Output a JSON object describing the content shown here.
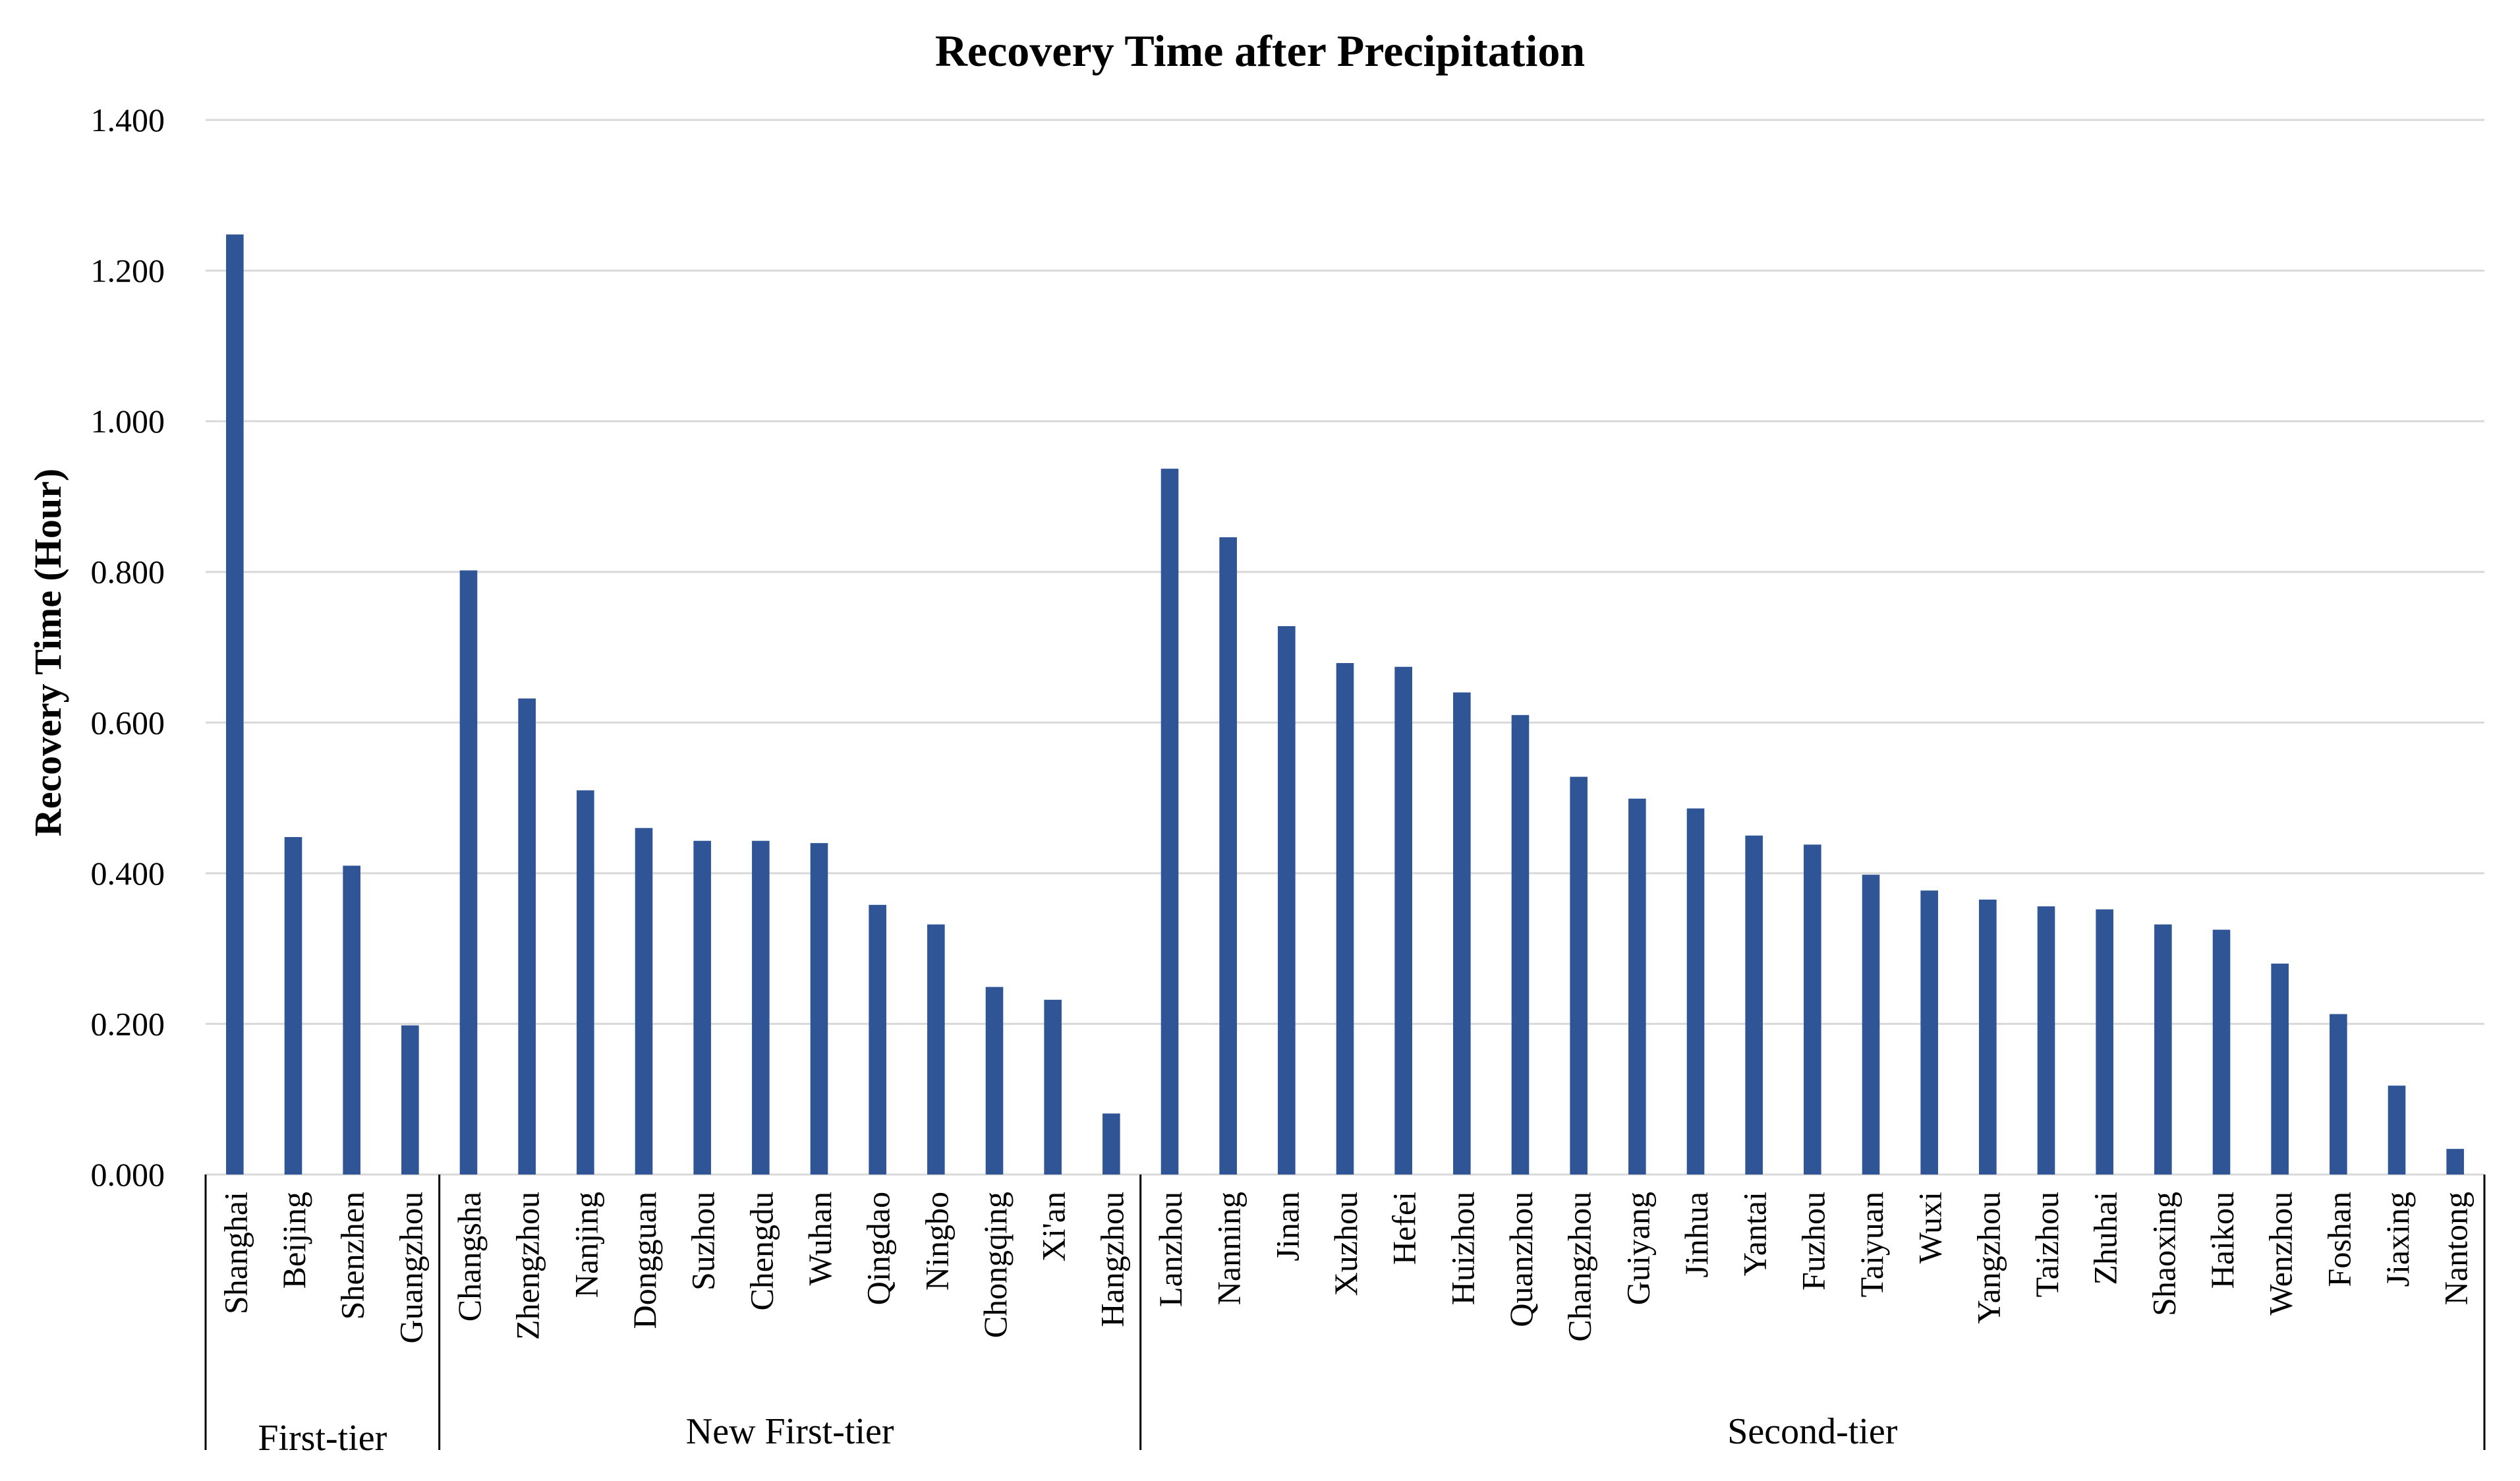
{
  "chart_data": {
    "type": "bar",
    "title": "Recovery Time after Precipitation",
    "ylabel": "Recovery Time (Hour)",
    "xlabel": "",
    "ylim": [
      0,
      1.4
    ],
    "yticks": [
      "0.000",
      "0.200",
      "0.400",
      "0.600",
      "0.800",
      "1.000",
      "1.200",
      "1.400"
    ],
    "grid": true,
    "color": "#2f5597",
    "categories": [
      "Shanghai",
      "Beijing",
      "Shenzhen",
      "Guangzhou",
      "Changsha",
      "Zhengzhou",
      "Nanjing",
      "Dongguan",
      "Suzhou",
      "Chengdu",
      "Wuhan",
      "Qingdao",
      "Ningbo",
      "Chongqing",
      "Xi'an",
      "Hangzhou",
      "Lanzhou",
      "Nanning",
      "Jinan",
      "Xuzhou",
      "Hefei",
      "Huizhou",
      "Quanzhou",
      "Changzhou",
      "Guiyang",
      "Jinhua",
      "Yantai",
      "Fuzhou",
      "Taiyuan",
      "Wuxi",
      "Yangzhou",
      "Taizhou",
      "Zhuhai",
      "Shaoxing",
      "Haikou",
      "Wenzhou",
      "Foshan",
      "Jiaxing",
      "Nantong"
    ],
    "values": [
      1.248,
      0.448,
      0.41,
      0.198,
      0.802,
      0.632,
      0.51,
      0.46,
      0.443,
      0.443,
      0.44,
      0.358,
      0.332,
      0.249,
      0.232,
      0.081,
      0.937,
      0.846,
      0.728,
      0.679,
      0.674,
      0.64,
      0.61,
      0.528,
      0.499,
      0.486,
      0.45,
      0.438,
      0.398,
      0.377,
      0.365,
      0.356,
      0.352,
      0.332,
      0.325,
      0.28,
      0.213,
      0.118,
      0.034
    ],
    "groups": [
      {
        "label": "First-tier",
        "start": 0,
        "end": 3
      },
      {
        "label": "New First-tier",
        "start": 4,
        "end": 15
      },
      {
        "label": "Second-tier",
        "start": 16,
        "end": 38
      }
    ]
  }
}
